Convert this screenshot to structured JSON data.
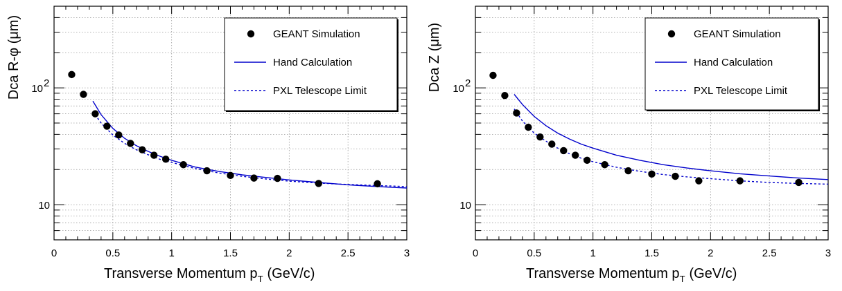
{
  "chart_data": [
    {
      "type": "scatter",
      "xlabel_main": "Transverse Momentum p",
      "xlabel_sub": "T",
      "xlabel_unit": "(GeV/c)",
      "ylabel": "Dca R-φ (μm)",
      "xlim": [
        0,
        3
      ],
      "ylim": [
        5,
        500
      ],
      "yscale": "log",
      "grid": true,
      "legend_position": "top-right",
      "x_ticks": [
        "0",
        "0.5",
        "1",
        "1.5",
        "2",
        "2.5",
        "3"
      ],
      "y_tick_10": "10",
      "y_tick_100_base": "10",
      "y_tick_100_exp": "2",
      "series": [
        {
          "name": "GEANT Simulation",
          "kind": "markers",
          "color": "#000000",
          "x": [
            0.15,
            0.25,
            0.35,
            0.45,
            0.55,
            0.65,
            0.75,
            0.85,
            0.95,
            1.1,
            1.3,
            1.5,
            1.7,
            1.9,
            2.25,
            2.75
          ],
          "y": [
            130,
            88,
            60,
            47,
            39.5,
            33.5,
            29.5,
            26.5,
            24.5,
            22,
            19.5,
            17.8,
            16.9,
            16.8,
            15.2,
            15.1
          ]
        },
        {
          "name": "Hand Calculation",
          "kind": "solid",
          "color": "#0000cc",
          "x": [
            0.33,
            0.4,
            0.5,
            0.6,
            0.7,
            0.8,
            0.9,
            1.0,
            1.2,
            1.4,
            1.6,
            1.8,
            2.0,
            2.25,
            2.5,
            2.75,
            3.0
          ],
          "y": [
            77,
            59,
            45,
            37,
            32,
            28.6,
            26,
            24,
            21,
            19.3,
            18,
            17.1,
            16.3,
            15.5,
            14.8,
            14.3,
            13.9
          ]
        },
        {
          "name": "PXL Telescope Limit",
          "kind": "dashed",
          "color": "#0000cc",
          "x": [
            0.33,
            0.4,
            0.5,
            0.6,
            0.7,
            0.8,
            0.9,
            1.0,
            1.2,
            1.4,
            1.6,
            1.8,
            2.0,
            2.25,
            2.5,
            2.75,
            3.0
          ],
          "y": [
            63,
            50,
            39.5,
            33.5,
            29.5,
            26.8,
            24.5,
            23,
            20.4,
            18.7,
            17.5,
            16.6,
            15.9,
            15.3,
            14.9,
            14.6,
            14.3
          ]
        }
      ]
    },
    {
      "type": "scatter",
      "xlabel_main": "Transverse Momentum p",
      "xlabel_sub": "T",
      "xlabel_unit": "(GeV/c)",
      "ylabel": "Dca Z (μm)",
      "xlim": [
        0,
        3
      ],
      "ylim": [
        5,
        500
      ],
      "yscale": "log",
      "grid": true,
      "legend_position": "top-right",
      "x_ticks": [
        "0",
        "0.5",
        "1",
        "1.5",
        "2",
        "2.5",
        "3"
      ],
      "y_tick_10": "10",
      "y_tick_100_base": "10",
      "y_tick_100_exp": "2",
      "series": [
        {
          "name": "GEANT Simulation",
          "kind": "markers",
          "color": "#000000",
          "x": [
            0.15,
            0.25,
            0.35,
            0.45,
            0.55,
            0.65,
            0.75,
            0.85,
            0.95,
            1.1,
            1.3,
            1.5,
            1.7,
            1.9,
            2.25,
            2.75
          ],
          "y": [
            128,
            86,
            61,
            46,
            38,
            33,
            29,
            26.5,
            24,
            22,
            19.5,
            18.3,
            17.5,
            16,
            16,
            15.5
          ]
        },
        {
          "name": "Hand Calculation",
          "kind": "solid",
          "color": "#0000cc",
          "x": [
            0.33,
            0.4,
            0.5,
            0.6,
            0.7,
            0.8,
            0.9,
            1.0,
            1.2,
            1.4,
            1.6,
            1.8,
            2.0,
            2.25,
            2.5,
            2.75,
            3.0
          ],
          "y": [
            88,
            72,
            57,
            47.5,
            41,
            36.5,
            33,
            30.5,
            26.5,
            24,
            22,
            20.6,
            19.5,
            18.4,
            17.6,
            16.9,
            16.4
          ]
        },
        {
          "name": "PXL Telescope Limit",
          "kind": "dashed",
          "color": "#0000cc",
          "x": [
            0.33,
            0.4,
            0.5,
            0.6,
            0.7,
            0.8,
            0.9,
            1.0,
            1.2,
            1.4,
            1.6,
            1.8,
            2.0,
            2.25,
            2.5,
            2.75,
            3.0
          ],
          "y": [
            66,
            52,
            41,
            35,
            30.5,
            27.3,
            25,
            23.3,
            20.9,
            19.3,
            18.1,
            17.3,
            16.7,
            16,
            15.5,
            15.2,
            15
          ]
        }
      ]
    }
  ]
}
